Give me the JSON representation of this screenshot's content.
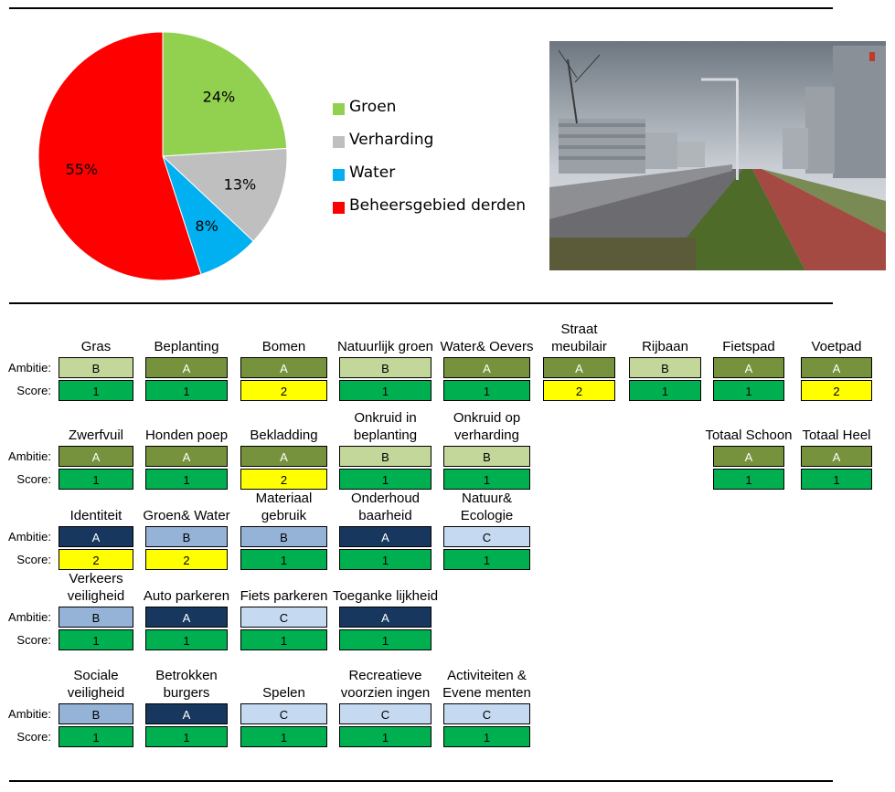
{
  "chart_data": {
    "type": "pie",
    "slices": [
      {
        "label": "Groen",
        "value": 24,
        "color": "#92d050"
      },
      {
        "label": "Verharding",
        "value": 13,
        "color": "#bfbfbf"
      },
      {
        "label": "Water",
        "value": 8,
        "color": "#00b0f0"
      },
      {
        "label": "Beheersgebied derden",
        "value": 55,
        "color": "#ff0000"
      }
    ],
    "data_labels": [
      "24%",
      "13%",
      "8%",
      "55%"
    ],
    "legend_position": "right"
  },
  "row_labels": {
    "ambitie": "Ambitie:",
    "score": "Score:"
  },
  "colors": {
    "ambitie_A_green": "#76923c",
    "ambitie_B_green": "#c4d79b",
    "ambitie_A_blue": "#17375e",
    "ambitie_B_blue": "#95b3d7",
    "ambitie_C_blue": "#c5d9f1",
    "score_1": "#00b050",
    "score_2": "#ffff00"
  },
  "groups": [
    {
      "items": [
        {
          "title": "Gras",
          "ambitie": "B",
          "ambitie_color": "#c4d79b",
          "score": "1",
          "score_color": "#00b050"
        },
        {
          "title": "Beplanting",
          "ambitie": "A",
          "ambitie_color": "#76923c",
          "score": "1",
          "score_color": "#00b050"
        },
        {
          "title": "Bomen",
          "ambitie": "A",
          "ambitie_color": "#76923c",
          "score": "2",
          "score_color": "#ffff00"
        },
        {
          "title": "Natuurlijk groen",
          "ambitie": "B",
          "ambitie_color": "#c4d79b",
          "score": "1",
          "score_color": "#00b050"
        },
        {
          "title": "Water& Oevers",
          "ambitie": "A",
          "ambitie_color": "#76923c",
          "score": "1",
          "score_color": "#00b050"
        },
        {
          "title": "Straat meubilair",
          "ambitie": "A",
          "ambitie_color": "#76923c",
          "score": "2",
          "score_color": "#ffff00"
        },
        {
          "title": "Rijbaan",
          "ambitie": "B",
          "ambitie_color": "#c4d79b",
          "score": "1",
          "score_color": "#00b050"
        },
        {
          "title": "Fietspad",
          "ambitie": "A",
          "ambitie_color": "#76923c",
          "score": "1",
          "score_color": "#00b050"
        },
        {
          "title": "Voetpad",
          "ambitie": "A",
          "ambitie_color": "#76923c",
          "score": "2",
          "score_color": "#ffff00"
        }
      ]
    },
    {
      "items": [
        {
          "title": "Zwerfvuil",
          "ambitie": "A",
          "ambitie_color": "#76923c",
          "score": "1",
          "score_color": "#00b050"
        },
        {
          "title": "Honden poep",
          "ambitie": "A",
          "ambitie_color": "#76923c",
          "score": "1",
          "score_color": "#00b050"
        },
        {
          "title": "Bekladding",
          "ambitie": "A",
          "ambitie_color": "#76923c",
          "score": "2",
          "score_color": "#ffff00"
        },
        {
          "title": "Onkruid in beplanting",
          "ambitie": "B",
          "ambitie_color": "#c4d79b",
          "score": "1",
          "score_color": "#00b050"
        },
        {
          "title": "Onkruid op verharding",
          "ambitie": "B",
          "ambitie_color": "#c4d79b",
          "score": "1",
          "score_color": "#00b050"
        },
        {
          "title": "Totaal Schoon",
          "ambitie": "A",
          "ambitie_color": "#76923c",
          "score": "1",
          "score_color": "#00b050"
        },
        {
          "title": "Totaal Heel",
          "ambitie": "A",
          "ambitie_color": "#76923c",
          "score": "1",
          "score_color": "#00b050"
        }
      ]
    },
    {
      "items": [
        {
          "title": "Identiteit",
          "ambitie": "A",
          "ambitie_color": "#17375e",
          "score": "2",
          "score_color": "#ffff00"
        },
        {
          "title": "Groen& Water",
          "ambitie": "B",
          "ambitie_color": "#95b3d7",
          "score": "2",
          "score_color": "#ffff00"
        },
        {
          "title": "Materiaal gebruik",
          "ambitie": "B",
          "ambitie_color": "#95b3d7",
          "score": "1",
          "score_color": "#00b050"
        },
        {
          "title": "Onderhoud baarheid",
          "ambitie": "A",
          "ambitie_color": "#17375e",
          "score": "1",
          "score_color": "#00b050"
        },
        {
          "title": "Natuur& Ecologie",
          "ambitie": "C",
          "ambitie_color": "#c5d9f1",
          "score": "1",
          "score_color": "#00b050"
        }
      ]
    },
    {
      "items": [
        {
          "title": "Verkeers veiligheid",
          "ambitie": "B",
          "ambitie_color": "#95b3d7",
          "score": "1",
          "score_color": "#00b050"
        },
        {
          "title": "Auto parkeren",
          "ambitie": "A",
          "ambitie_color": "#17375e",
          "score": "1",
          "score_color": "#00b050"
        },
        {
          "title": "Fiets parkeren",
          "ambitie": "C",
          "ambitie_color": "#c5d9f1",
          "score": "1",
          "score_color": "#00b050"
        },
        {
          "title": "Toeganke lijkheid",
          "ambitie": "A",
          "ambitie_color": "#17375e",
          "score": "1",
          "score_color": "#00b050"
        }
      ]
    },
    {
      "items": [
        {
          "title": "Sociale veiligheid",
          "ambitie": "B",
          "ambitie_color": "#95b3d7",
          "score": "1",
          "score_color": "#00b050"
        },
        {
          "title": "Betrokken burgers",
          "ambitie": "A",
          "ambitie_color": "#17375e",
          "score": "1",
          "score_color": "#00b050"
        },
        {
          "title": "Spelen",
          "ambitie": "C",
          "ambitie_color": "#c5d9f1",
          "score": "1",
          "score_color": "#00b050"
        },
        {
          "title": "Recreatieve voorzien ingen",
          "ambitie": "C",
          "ambitie_color": "#c5d9f1",
          "score": "1",
          "score_color": "#00b050"
        },
        {
          "title": "Activiteiten & Evene menten",
          "ambitie": "C",
          "ambitie_color": "#c5d9f1",
          "score": "1",
          "score_color": "#00b050"
        }
      ]
    }
  ]
}
